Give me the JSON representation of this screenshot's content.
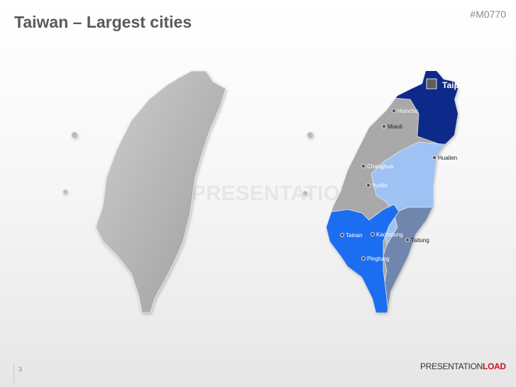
{
  "slide": {
    "title": "Taiwan – Largest cities",
    "code": "#M0770",
    "page_number": "3",
    "watermark": "PRESENTATIONLOAD",
    "logo": {
      "part1": "PRESENTATION",
      "part2": "LOAD"
    }
  },
  "map": {
    "capital": "Taipei",
    "cities": [
      "Hsinchu",
      "Miaoli",
      "Changhua",
      "Yunlin",
      "Hualien",
      "Tainan",
      "Kaohsiung",
      "Taitung",
      "Pingtung"
    ],
    "colors": {
      "north": "#0a2a8a",
      "central": "#a9a9a9",
      "east": "#9fc2f5",
      "southeast": "#6f86ad",
      "south": "#1f6ef0",
      "silhouette": "#b4b4b4"
    }
  }
}
